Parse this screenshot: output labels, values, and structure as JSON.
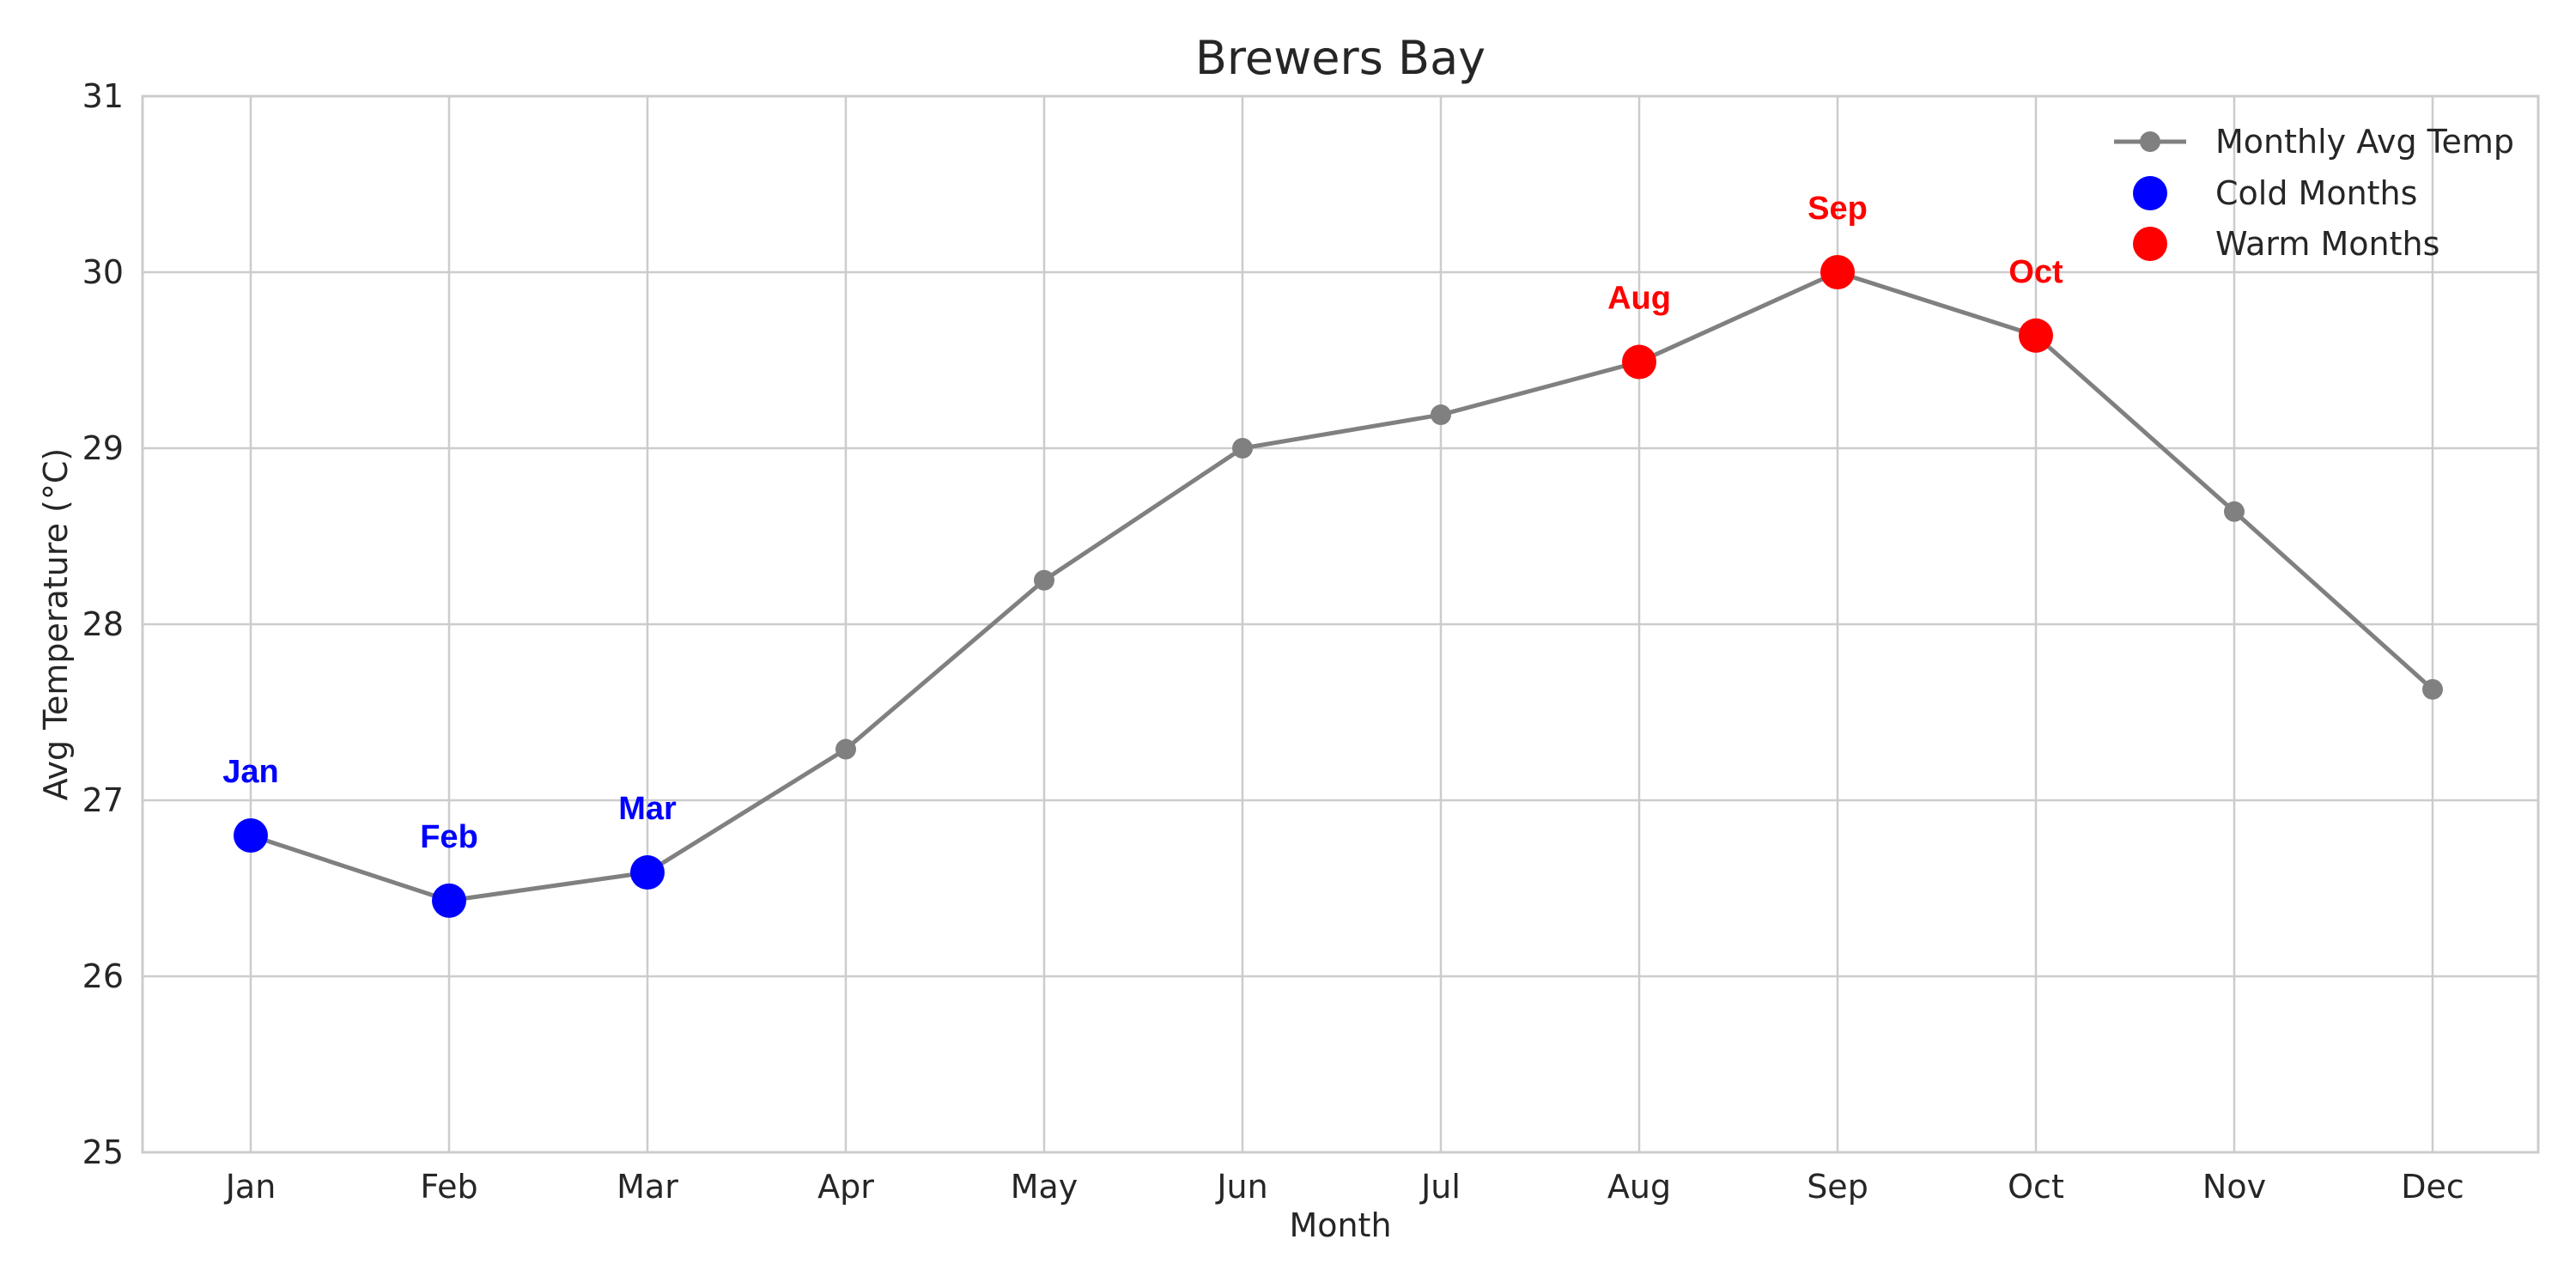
{
  "chart_data": {
    "type": "line",
    "title": "Brewers Bay",
    "xlabel": "Month",
    "ylabel": "Avg Temperature (°C)",
    "categories": [
      "Jan",
      "Feb",
      "Mar",
      "Apr",
      "May",
      "Jun",
      "Jul",
      "Aug",
      "Sep",
      "Oct",
      "Nov",
      "Dec"
    ],
    "series": [
      {
        "name": "Monthly Avg Temp",
        "values": [
          26.8,
          26.43,
          26.59,
          27.29,
          28.25,
          29.0,
          29.19,
          29.49,
          30.0,
          29.64,
          28.64,
          27.63
        ],
        "color": "#808080"
      }
    ],
    "highlights": {
      "cold": {
        "name": "Cold Months",
        "color": "#0000ff",
        "months": [
          "Jan",
          "Feb",
          "Mar"
        ]
      },
      "warm": {
        "name": "Warm Months",
        "color": "#ff0000",
        "months": [
          "Aug",
          "Sep",
          "Oct"
        ]
      }
    },
    "ylim": [
      25,
      31
    ],
    "yticks": [
      25,
      26,
      27,
      28,
      29,
      30,
      31
    ],
    "grid": true,
    "legend_position": "top-right"
  }
}
